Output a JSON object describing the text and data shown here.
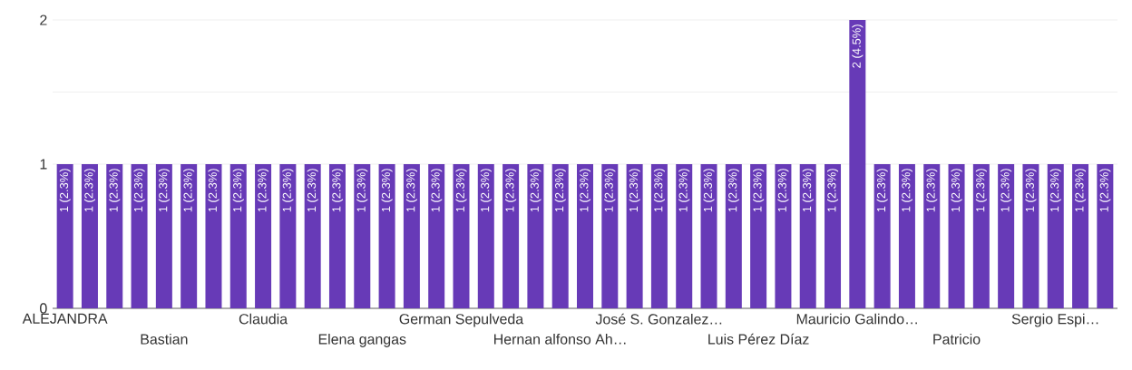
{
  "chart_data": {
    "type": "bar",
    "categories": [
      "ALEJANDRA",
      null,
      null,
      null,
      "Bastian",
      null,
      null,
      null,
      "Claudia",
      null,
      null,
      null,
      "Elena gangas",
      null,
      null,
      null,
      "German Sepulveda",
      null,
      null,
      null,
      "Hernan alfonso Ah…",
      null,
      null,
      null,
      "José S. Gonzalez…",
      null,
      null,
      null,
      "Luis Pérez Díaz",
      null,
      null,
      null,
      "Mauricio Galindo…",
      null,
      null,
      null,
      "Patricio",
      null,
      null,
      null,
      "Sergio Espi…",
      null,
      null
    ],
    "values": [
      1,
      1,
      1,
      1,
      1,
      1,
      1,
      1,
      1,
      1,
      1,
      1,
      1,
      1,
      1,
      1,
      1,
      1,
      1,
      1,
      1,
      1,
      1,
      1,
      1,
      1,
      1,
      1,
      1,
      1,
      1,
      1,
      2,
      1,
      1,
      1,
      1,
      1,
      1,
      1,
      1,
      1,
      1
    ],
    "value_labels": [
      "1 (2.3%)",
      "1 (2.3%)",
      "1 (2.3%)",
      "1 (2.3%)",
      "1 (2.3%)",
      "1 (2.3%)",
      "1 (2.3%)",
      "1 (2.3%)",
      "1 (2.3%)",
      "1 (2.3%)",
      "1 (2.3%)",
      "1 (2.3%)",
      "1 (2.3%)",
      "1 (2.3%)",
      "1 (2.3%)",
      "1 (2.3%)",
      "1 (2.3%)",
      "1 (2.3%)",
      "1 (2.3%)",
      "1 (2.3%)",
      "1 (2.3%)",
      "1 (2.3%)",
      "1 (2.3%)",
      "1 (2.3%)",
      "1 (2.3%)",
      "1 (2.3%)",
      "1 (2.3%)",
      "1 (2.3%)",
      "1 (2.3%)",
      "1 (2.3%)",
      "1 (2.3%)",
      "1 (2.3%)",
      "2 (4.5%)",
      "1 (2.3%)",
      "1 (2.3%)",
      "1 (2.3%)",
      "1 (2.3%)",
      "1 (2.3%)",
      "1 (2.3%)",
      "1 (2.3%)",
      "1 (2.3%)",
      "1 (2.3%)",
      "1 (2.3%)"
    ],
    "color": "#673ab7",
    "ylim": [
      0,
      2
    ],
    "yticks": [
      0,
      1,
      {
        "value": 1.5,
        "label": null
      },
      2
    ],
    "grid": "y"
  }
}
